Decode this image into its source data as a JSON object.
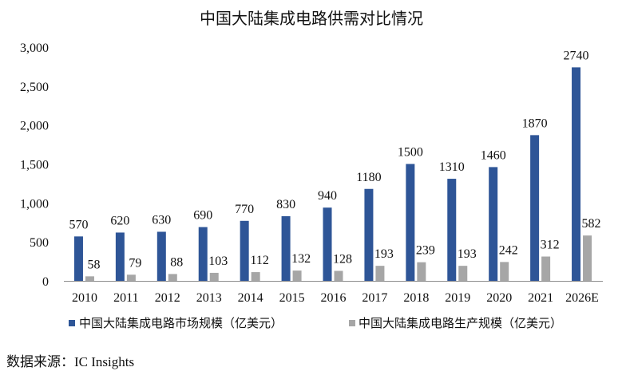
{
  "chart_data": {
    "type": "bar",
    "title": "中国大陆集成电路供需对比情况",
    "xlabel": "",
    "ylabel": "",
    "categories": [
      "2010",
      "2011",
      "2012",
      "2013",
      "2014",
      "2015",
      "2016",
      "2017",
      "2018",
      "2019",
      "2020",
      "2021",
      "2026E"
    ],
    "series": [
      {
        "name": "中国大陆集成电路市场规模（亿美元）",
        "color": "#2E5597",
        "values": [
          570,
          620,
          630,
          690,
          770,
          830,
          940,
          1180,
          1500,
          1310,
          1460,
          1870,
          2740
        ]
      },
      {
        "name": "中国大陆集成电路生产规模（亿美元）",
        "color": "#A6A6A6",
        "values": [
          58,
          79,
          88,
          103,
          112,
          132,
          128,
          193,
          239,
          193,
          242,
          312,
          582
        ]
      }
    ],
    "ylim": [
      0,
      3000
    ],
    "y_ticks": [
      0,
      500,
      1000,
      1500,
      2000,
      2500,
      3000
    ],
    "y_tick_labels": [
      "0",
      "500",
      "1,000",
      "1,500",
      "2,000",
      "2,500",
      "3,000"
    ],
    "grid": false,
    "legend_position": "bottom"
  },
  "source": "数据来源：IC Insights"
}
